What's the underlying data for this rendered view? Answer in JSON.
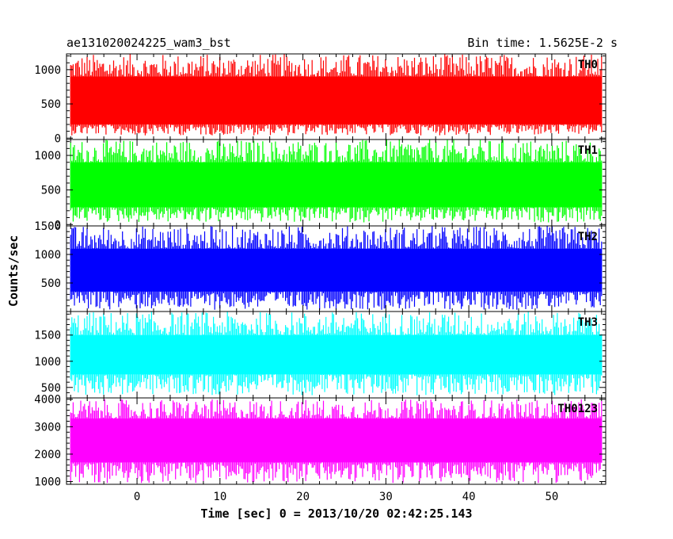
{
  "chart_data": {
    "type": "line",
    "title_left": "ae131020024225_wam3_bst",
    "title_right": "Bin time: 1.5625E-2 s",
    "xlabel": "Time [sec] 0 = 2013/10/20 02:42:25.143",
    "ylabel": "Counts/sec",
    "xlim": [
      -8.5,
      56.5
    ],
    "x_ticks": [
      0,
      10,
      20,
      30,
      40,
      50
    ],
    "x_data_range": [
      -8,
      56
    ],
    "grid": false,
    "panels": [
      {
        "name": "TH0",
        "color": "#ff0000",
        "ylim": [
          -20,
          1230
        ],
        "y_ticks": [
          0,
          500,
          1000
        ],
        "y_minor_step": 100,
        "band": [
          200,
          900
        ],
        "floor": 40,
        "peak": 1230
      },
      {
        "name": "TH1",
        "color": "#00ff00",
        "ylim": [
          -20,
          1230
        ],
        "y_ticks": [
          0,
          500,
          1000
        ],
        "y_minor_step": 100,
        "band": [
          250,
          900
        ],
        "floor": 30,
        "peak": 1230
      },
      {
        "name": "TH2",
        "color": "#0000ff",
        "ylim": [
          0,
          1500
        ],
        "y_ticks": [
          500,
          1000,
          1500
        ],
        "y_minor_step": 100,
        "band": [
          350,
          1100
        ],
        "floor": 30,
        "peak": 1500
      },
      {
        "name": "TH3",
        "color": "#00ffff",
        "ylim": [
          300,
          1950
        ],
        "y_ticks": [
          500,
          1000,
          1500
        ],
        "y_minor_step": 100,
        "band": [
          750,
          1500
        ],
        "floor": 350,
        "peak": 1950
      },
      {
        "name": "TH0123",
        "color": "#ff00ff",
        "ylim": [
          900,
          4050
        ],
        "y_ticks": [
          1000,
          2000,
          3000,
          4000
        ],
        "y_minor_step": 200,
        "band": [
          1700,
          3300
        ],
        "floor": 950,
        "peak": 4000
      }
    ]
  }
}
